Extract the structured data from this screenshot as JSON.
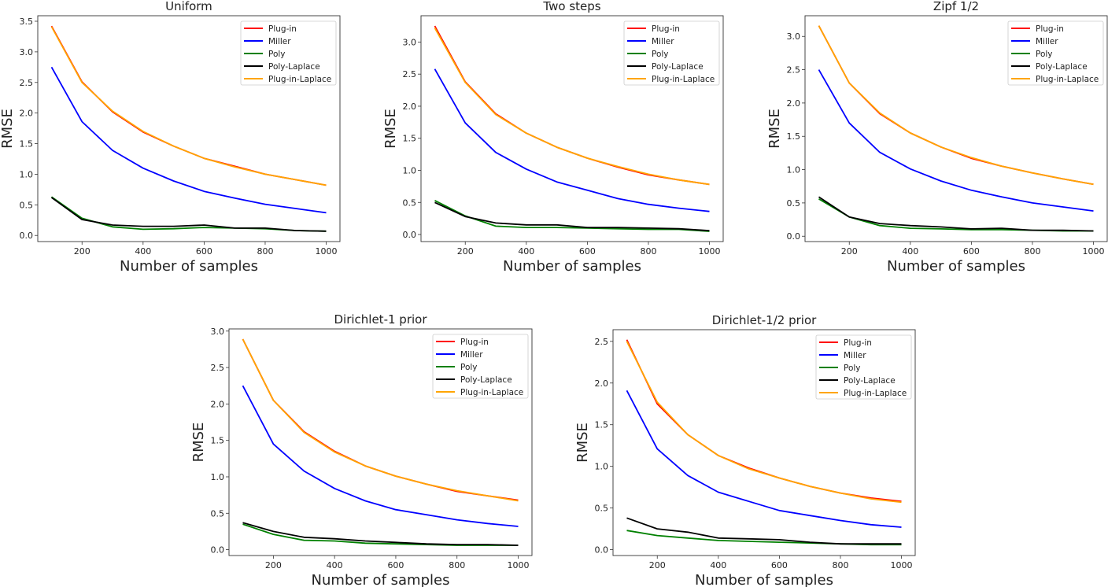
{
  "chart_data": [
    {
      "type": "line",
      "title": "Uniform",
      "xlabel": "Number of samples",
      "ylabel": "RMSE",
      "x": [
        100,
        200,
        300,
        400,
        500,
        600,
        700,
        800,
        900,
        1000
      ],
      "xlim": [
        55,
        1045
      ],
      "ylim": [
        -0.1,
        3.59
      ],
      "xticks": [
        200,
        400,
        600,
        800,
        1000
      ],
      "yticks": [
        0.0,
        0.5,
        1.0,
        1.5,
        2.0,
        2.5,
        3.0,
        3.5
      ],
      "grid": false,
      "legend": "top-right",
      "series": [
        {
          "name": "Plug-in",
          "color": "#ff0000",
          "values": [
            3.42,
            2.51,
            2.02,
            1.69,
            1.46,
            1.26,
            1.13,
            1.0,
            0.91,
            0.82
          ]
        },
        {
          "name": "Miller",
          "color": "#0000ff",
          "values": [
            2.75,
            1.86,
            1.39,
            1.1,
            0.89,
            0.72,
            0.61,
            0.51,
            0.44,
            0.37
          ]
        },
        {
          "name": "Poly",
          "color": "#008000",
          "values": [
            0.63,
            0.28,
            0.14,
            0.1,
            0.11,
            0.13,
            0.12,
            0.11,
            0.08,
            0.07
          ]
        },
        {
          "name": "Poly-Laplace",
          "color": "#000000",
          "values": [
            0.62,
            0.26,
            0.17,
            0.15,
            0.15,
            0.17,
            0.12,
            0.12,
            0.08,
            0.07
          ]
        },
        {
          "name": "Plug-in-Laplace",
          "color": "#ffa500",
          "values": [
            3.41,
            2.5,
            2.03,
            1.7,
            1.46,
            1.26,
            1.12,
            1.0,
            0.91,
            0.82
          ]
        }
      ]
    },
    {
      "type": "line",
      "title": "Two steps",
      "xlabel": "Number of samples",
      "ylabel": "RMSE",
      "x": [
        100,
        200,
        300,
        400,
        500,
        600,
        700,
        800,
        900,
        1000
      ],
      "xlim": [
        55,
        1045
      ],
      "ylim": [
        -0.11,
        3.41
      ],
      "xticks": [
        200,
        400,
        600,
        800,
        1000
      ],
      "yticks": [
        0.0,
        0.5,
        1.0,
        1.5,
        2.0,
        2.5,
        3.0
      ],
      "grid": false,
      "legend": "top-right",
      "series": [
        {
          "name": "Plug-in",
          "color": "#ff0000",
          "values": [
            3.25,
            2.38,
            1.88,
            1.58,
            1.36,
            1.19,
            1.05,
            0.93,
            0.85,
            0.78
          ]
        },
        {
          "name": "Miller",
          "color": "#0000ff",
          "values": [
            2.58,
            1.74,
            1.28,
            1.02,
            0.82,
            0.69,
            0.56,
            0.47,
            0.41,
            0.36
          ]
        },
        {
          "name": "Poly",
          "color": "#008000",
          "values": [
            0.53,
            0.29,
            0.13,
            0.11,
            0.11,
            0.1,
            0.09,
            0.08,
            0.08,
            0.05
          ]
        },
        {
          "name": "Poly-Laplace",
          "color": "#000000",
          "values": [
            0.5,
            0.28,
            0.18,
            0.15,
            0.15,
            0.11,
            0.11,
            0.1,
            0.09,
            0.06
          ]
        },
        {
          "name": "Plug-in-Laplace",
          "color": "#ffa500",
          "values": [
            3.22,
            2.37,
            1.87,
            1.58,
            1.36,
            1.19,
            1.06,
            0.94,
            0.85,
            0.78
          ]
        }
      ]
    },
    {
      "type": "line",
      "title": "Zipf 1/2",
      "xlabel": "Number of samples",
      "ylabel": "RMSE",
      "x": [
        100,
        200,
        300,
        400,
        500,
        600,
        700,
        800,
        900,
        1000
      ],
      "xlim": [
        55,
        1045
      ],
      "ylim": [
        -0.08,
        3.31
      ],
      "xticks": [
        200,
        400,
        600,
        800,
        1000
      ],
      "yticks": [
        0.0,
        0.5,
        1.0,
        1.5,
        2.0,
        2.5,
        3.0
      ],
      "grid": false,
      "legend": "top-right",
      "series": [
        {
          "name": "Plug-in",
          "color": "#ff0000",
          "values": [
            3.16,
            2.3,
            1.84,
            1.55,
            1.34,
            1.17,
            1.05,
            0.95,
            0.86,
            0.78
          ]
        },
        {
          "name": "Miller",
          "color": "#0000ff",
          "values": [
            2.5,
            1.7,
            1.26,
            1.01,
            0.83,
            0.69,
            0.59,
            0.5,
            0.44,
            0.38
          ]
        },
        {
          "name": "Poly",
          "color": "#008000",
          "values": [
            0.56,
            0.29,
            0.16,
            0.12,
            0.11,
            0.1,
            0.1,
            0.09,
            0.08,
            0.08
          ]
        },
        {
          "name": "Poly-Laplace",
          "color": "#000000",
          "values": [
            0.59,
            0.29,
            0.19,
            0.16,
            0.14,
            0.11,
            0.12,
            0.09,
            0.09,
            0.08
          ]
        },
        {
          "name": "Plug-in-Laplace",
          "color": "#ffa500",
          "values": [
            3.16,
            2.3,
            1.85,
            1.55,
            1.34,
            1.18,
            1.05,
            0.95,
            0.86,
            0.78
          ]
        }
      ]
    },
    {
      "type": "line",
      "title": "Dirichlet-1 prior",
      "xlabel": "Number of samples",
      "ylabel": "RMSE",
      "x": [
        100,
        200,
        300,
        400,
        500,
        600,
        700,
        800,
        900,
        1000
      ],
      "xlim": [
        55,
        1045
      ],
      "ylim": [
        -0.08,
        3.03
      ],
      "xticks": [
        200,
        400,
        600,
        800,
        1000
      ],
      "yticks": [
        0.0,
        0.5,
        1.0,
        1.5,
        2.0,
        2.5,
        3.0
      ],
      "grid": false,
      "legend": "top-right",
      "series": [
        {
          "name": "Plug-in",
          "color": "#ff0000",
          "values": [
            2.89,
            2.05,
            1.62,
            1.35,
            1.15,
            1.01,
            0.9,
            0.8,
            0.74,
            0.68
          ]
        },
        {
          "name": "Miller",
          "color": "#0000ff",
          "values": [
            2.25,
            1.45,
            1.08,
            0.84,
            0.67,
            0.55,
            0.48,
            0.41,
            0.36,
            0.32
          ]
        },
        {
          "name": "Poly",
          "color": "#008000",
          "values": [
            0.35,
            0.21,
            0.13,
            0.12,
            0.09,
            0.08,
            0.07,
            0.06,
            0.06,
            0.06
          ]
        },
        {
          "name": "Poly-Laplace",
          "color": "#000000",
          "values": [
            0.37,
            0.25,
            0.17,
            0.15,
            0.12,
            0.1,
            0.08,
            0.07,
            0.07,
            0.06
          ]
        },
        {
          "name": "Plug-in-Laplace",
          "color": "#ffa500",
          "values": [
            2.89,
            2.05,
            1.61,
            1.34,
            1.15,
            1.01,
            0.9,
            0.81,
            0.74,
            0.67
          ]
        }
      ]
    },
    {
      "type": "line",
      "title": "Dirichlet-1/2 prior",
      "xlabel": "Number of samples",
      "ylabel": "RMSE",
      "x": [
        100,
        200,
        300,
        400,
        500,
        600,
        700,
        800,
        900,
        1000
      ],
      "xlim": [
        55,
        1045
      ],
      "ylim": [
        -0.07,
        2.64
      ],
      "xticks": [
        200,
        400,
        600,
        800,
        1000
      ],
      "yticks": [
        0.0,
        0.5,
        1.0,
        1.5,
        2.0,
        2.5
      ],
      "grid": false,
      "legend": "top-right",
      "series": [
        {
          "name": "Plug-in",
          "color": "#ff0000",
          "values": [
            2.52,
            1.75,
            1.38,
            1.13,
            0.98,
            0.86,
            0.76,
            0.68,
            0.62,
            0.58
          ]
        },
        {
          "name": "Miller",
          "color": "#0000ff",
          "values": [
            1.91,
            1.21,
            0.89,
            0.69,
            0.58,
            0.47,
            0.41,
            0.35,
            0.3,
            0.27
          ]
        },
        {
          "name": "Poly",
          "color": "#008000",
          "values": [
            0.23,
            0.17,
            0.14,
            0.11,
            0.1,
            0.09,
            0.08,
            0.07,
            0.06,
            0.06
          ]
        },
        {
          "name": "Poly-Laplace",
          "color": "#000000",
          "values": [
            0.38,
            0.25,
            0.21,
            0.14,
            0.13,
            0.12,
            0.09,
            0.07,
            0.07,
            0.07
          ]
        },
        {
          "name": "Plug-in-Laplace",
          "color": "#ffa500",
          "values": [
            2.5,
            1.77,
            1.38,
            1.13,
            0.97,
            0.86,
            0.76,
            0.68,
            0.61,
            0.57
          ]
        }
      ]
    }
  ]
}
